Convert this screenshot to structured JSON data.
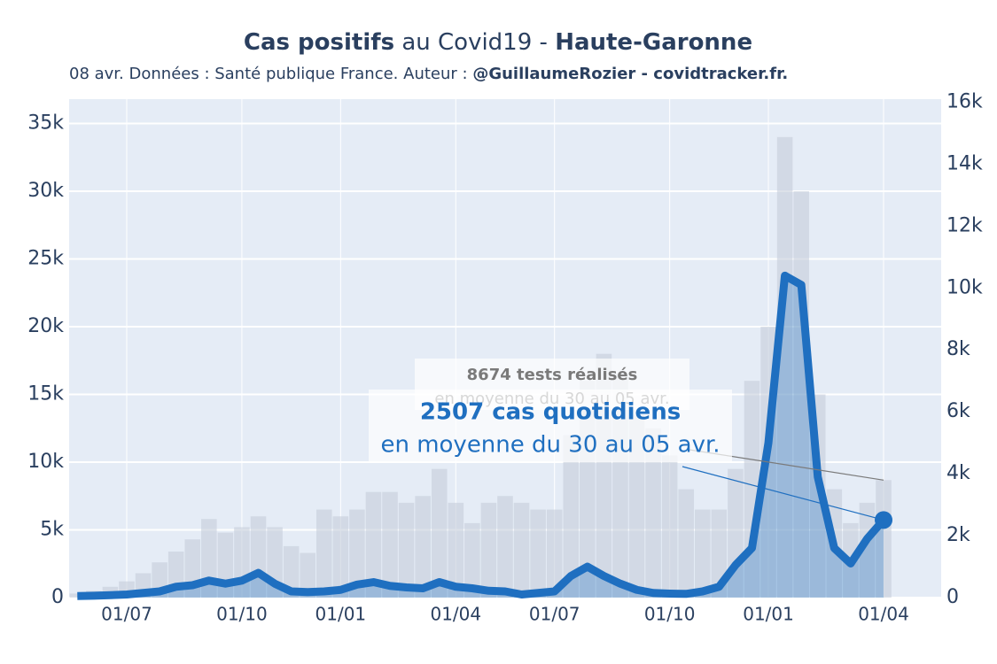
{
  "chart_data": {
    "type": "combo",
    "title": {
      "bold_1": "Cas positifs",
      "normal": " au Covid19 - ",
      "bold_2": "Haute-Garonne"
    },
    "subtitle": {
      "normal": "08 avr. Données : Santé publique France. Auteur : ",
      "bold": "@GuillaumeRozier - covidtracker.fr."
    },
    "categories": [
      null,
      null,
      null,
      "01/07",
      null,
      null,
      null,
      null,
      null,
      null,
      "01/10",
      null,
      null,
      null,
      null,
      null,
      "01/01",
      null,
      null,
      null,
      null,
      null,
      null,
      "01/04",
      null,
      null,
      null,
      null,
      null,
      "01/07",
      null,
      null,
      null,
      null,
      null,
      null,
      "01/10",
      null,
      null,
      null,
      null,
      null,
      "01/01",
      null,
      null,
      null,
      null,
      null,
      null,
      "01/04",
      null,
      null,
      null
    ],
    "series": [
      {
        "type": "bar",
        "axis": "y",
        "color": "#c5cdda",
        "values": [
          300,
          500,
          800,
          1200,
          1800,
          2600,
          3400,
          4300,
          5800,
          4800,
          5200,
          6000,
          5200,
          3800,
          3300,
          6500,
          6000,
          6500,
          7800,
          7800,
          7000,
          7500,
          9500,
          7000,
          5500,
          7000,
          7500,
          7000,
          6500,
          6500,
          12000,
          16000,
          18000,
          16500,
          13500,
          12500,
          10500,
          8000,
          6500,
          6500,
          9500,
          16000,
          20000,
          34000,
          30000,
          15000,
          8000,
          5500,
          7000,
          8674,
          null,
          null,
          null
        ]
      },
      {
        "type": "line",
        "axis": "y2",
        "color": "#1f6fc0",
        "values": [
          50,
          60,
          80,
          100,
          150,
          200,
          350,
          400,
          550,
          450,
          550,
          800,
          450,
          200,
          180,
          200,
          250,
          420,
          500,
          380,
          330,
          300,
          500,
          350,
          300,
          220,
          200,
          100,
          150,
          200,
          700,
          1000,
          700,
          450,
          250,
          150,
          130,
          120,
          200,
          350,
          1050,
          1600,
          5000,
          10400,
          10100,
          3900,
          1600,
          1100,
          1900,
          2507,
          null,
          null,
          null
        ]
      }
    ],
    "ylim": [
      0,
      36800
    ],
    "yticks": [
      0,
      {
        "value": 5000,
        "label": "5k"
      },
      {
        "value": 10000,
        "label": "10k"
      },
      {
        "value": 15000,
        "label": "15k"
      },
      {
        "value": 20000,
        "label": "20k"
      },
      {
        "value": 25000,
        "label": "25k"
      },
      {
        "value": 30000,
        "label": "30k"
      },
      {
        "value": 35000,
        "label": "35k"
      }
    ],
    "y2lim": [
      0,
      16100
    ],
    "y2ticks": [
      0,
      {
        "value": 2000,
        "label": "2k"
      },
      {
        "value": 4000,
        "label": "4k"
      },
      {
        "value": 6000,
        "label": "6k"
      },
      {
        "value": 8000,
        "label": "8k"
      },
      {
        "value": 10000,
        "label": "10k"
      },
      {
        "value": 12000,
        "label": "12k"
      },
      {
        "value": 14000,
        "label": "14k"
      },
      {
        "value": 16000,
        "label": "16k"
      }
    ],
    "grid": true,
    "annotations": [
      {
        "line1": "8674 tests réalisés",
        "line2": "en moyenne du 30 au 05 avr.",
        "color": "#7a7a7a"
      },
      {
        "line1": "2507 cas quotidiens",
        "line2": "en moyenne du 30 au 05 avr.",
        "color": "#1f6fc0"
      }
    ]
  }
}
